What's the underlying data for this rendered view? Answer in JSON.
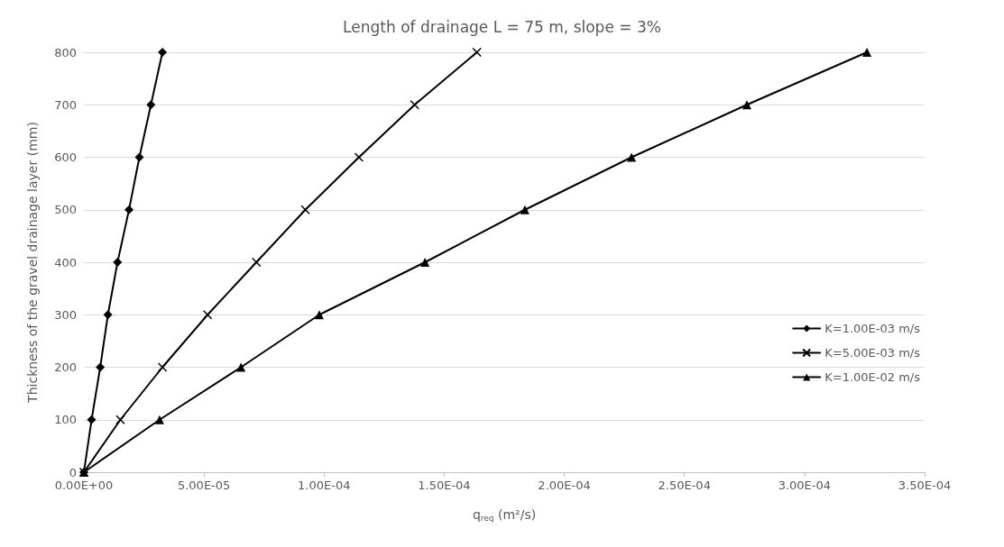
{
  "chart_data": {
    "type": "line",
    "title": "Length of drainage L = 75 m, slope = 3%",
    "xlabel": "q$_{req}$ (m²/s)",
    "ylabel": "Thickness of the gravel drainage layer (mm)",
    "xlim": [
      0,
      0.00035
    ],
    "xticks": [
      {
        "value": 0,
        "label": "0.00E+00"
      },
      {
        "value": 5e-05,
        "label": "5.00E-05"
      },
      {
        "value": 0.0001,
        "label": "1.00E-04"
      },
      {
        "value": 0.00015,
        "label": "1.50E-04"
      },
      {
        "value": 0.0002,
        "label": "2.00E-04"
      },
      {
        "value": 0.00025,
        "label": "2.50E-04"
      },
      {
        "value": 0.0003,
        "label": "3.00E-04"
      },
      {
        "value": 0.00035,
        "label": "3.50E-04"
      }
    ],
    "ylim": [
      0,
      800
    ],
    "yticks": [
      0,
      100,
      200,
      300,
      400,
      500,
      600,
      700,
      800
    ],
    "grid": "y",
    "legend": "right",
    "line_style": "solid",
    "series": [
      {
        "name": "K=1.00E-03 m/s",
        "color": "#000000",
        "marker": "diamond",
        "x": [
          0,
          3.2e-06,
          6.8e-06,
          1e-05,
          1.4e-05,
          1.88e-05,
          2.31e-05,
          2.79e-05,
          3.27e-05
        ],
        "values": [
          0,
          100,
          200,
          300,
          400,
          500,
          600,
          700,
          800
        ]
      },
      {
        "name": "K=5.00E-03 m/s",
        "color": "#000000",
        "marker": "cross",
        "x": [
          0,
          1.52e-05,
          3.27e-05,
          5.15e-05,
          7.18e-05,
          9.22e-05,
          0.0001145,
          0.0001377,
          0.0001636
        ],
        "values": [
          0,
          100,
          200,
          300,
          400,
          500,
          600,
          700,
          800
        ]
      },
      {
        "name": "K=1.00E-02 m/s",
        "color": "#000000",
        "marker": "triangle",
        "x": [
          0,
          3.15e-05,
          6.54e-05,
          9.8e-05,
          0.000142,
          0.0001836,
          0.000228,
          0.000276,
          0.000326
        ],
        "values": [
          0,
          100,
          200,
          300,
          400,
          500,
          600,
          700,
          800
        ]
      }
    ]
  }
}
